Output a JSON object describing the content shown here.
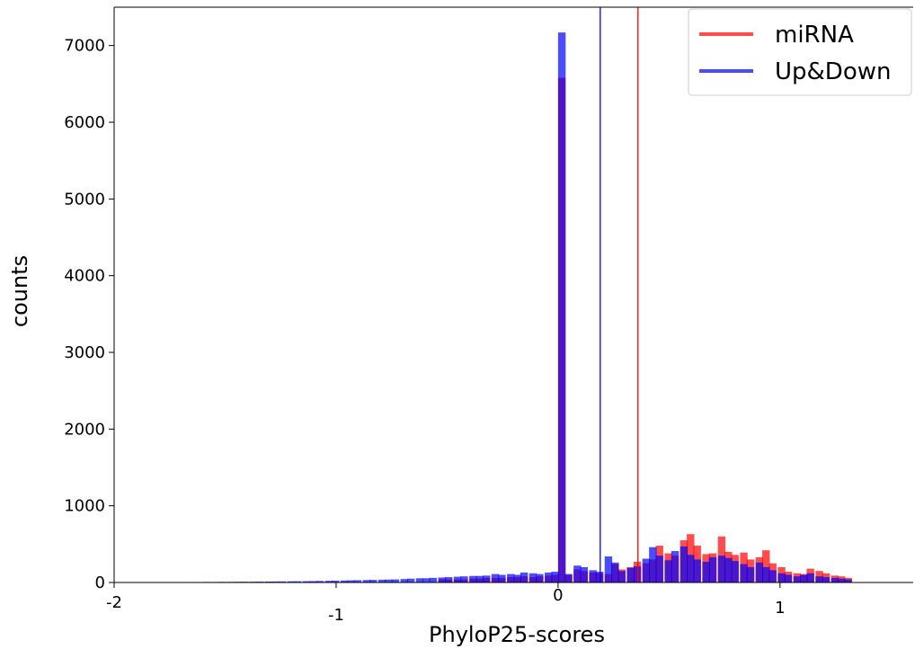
{
  "chart_data": {
    "type": "histogram",
    "title": "",
    "xlabel": "PhyloP25-scores",
    "ylabel": "counts",
    "xlim": [
      -2,
      1.6
    ],
    "ylim": [
      0,
      7500
    ],
    "x_ticks": [
      {
        "value": -2,
        "label": "-2"
      },
      {
        "value": -1,
        "label": "-1"
      },
      {
        "value": 0,
        "label": "0"
      },
      {
        "value": 1,
        "label": "1"
      }
    ],
    "y_ticks": [
      {
        "value": 0,
        "label": "0"
      },
      {
        "value": 1000,
        "label": "1000"
      },
      {
        "value": 2000,
        "label": "2000"
      },
      {
        "value": 3000,
        "label": "3000"
      },
      {
        "value": 4000,
        "label": "4000"
      },
      {
        "value": 5000,
        "label": "5000"
      },
      {
        "value": 6000,
        "label": "6000"
      },
      {
        "value": 7000,
        "label": "7000"
      }
    ],
    "grid": false,
    "legend_position": "top-right",
    "bin_width": 0.034,
    "series": [
      {
        "name": "miRNA",
        "color": "#ff0000",
        "opacity": 0.7,
        "bins": [
          [
            -0.54,
            40
          ],
          [
            -0.51,
            40
          ],
          [
            -0.47,
            40
          ],
          [
            -0.44,
            40
          ],
          [
            -0.4,
            50
          ],
          [
            -0.37,
            50
          ],
          [
            -0.34,
            60
          ],
          [
            -0.3,
            60
          ],
          [
            -0.27,
            60
          ],
          [
            -0.23,
            70
          ],
          [
            -0.2,
            70
          ],
          [
            -0.17,
            80
          ],
          [
            -0.13,
            70
          ],
          [
            -0.1,
            80
          ],
          [
            -0.06,
            90
          ],
          [
            -0.03,
            100
          ],
          [
            0.0,
            6580
          ],
          [
            0.03,
            100
          ],
          [
            0.07,
            170
          ],
          [
            0.1,
            150
          ],
          [
            0.14,
            130
          ],
          [
            0.17,
            120
          ],
          [
            0.21,
            110
          ],
          [
            0.24,
            240
          ],
          [
            0.27,
            170
          ],
          [
            0.31,
            200
          ],
          [
            0.34,
            270
          ],
          [
            0.38,
            250
          ],
          [
            0.41,
            300
          ],
          [
            0.44,
            480
          ],
          [
            0.48,
            380
          ],
          [
            0.51,
            350
          ],
          [
            0.55,
            550
          ],
          [
            0.58,
            630
          ],
          [
            0.61,
            480
          ],
          [
            0.65,
            370
          ],
          [
            0.68,
            380
          ],
          [
            0.72,
            600
          ],
          [
            0.75,
            400
          ],
          [
            0.78,
            360
          ],
          [
            0.82,
            390
          ],
          [
            0.85,
            300
          ],
          [
            0.89,
            330
          ],
          [
            0.92,
            420
          ],
          [
            0.95,
            250
          ],
          [
            0.99,
            200
          ],
          [
            1.02,
            140
          ],
          [
            1.06,
            120
          ],
          [
            1.09,
            110
          ],
          [
            1.12,
            180
          ],
          [
            1.16,
            150
          ],
          [
            1.19,
            120
          ],
          [
            1.23,
            90
          ],
          [
            1.26,
            80
          ],
          [
            1.29,
            60
          ]
        ]
      },
      {
        "name": "Up&Down",
        "color": "#0000ff",
        "opacity": 0.7,
        "bins": [
          [
            -1.8,
            4
          ],
          [
            -1.77,
            4
          ],
          [
            -1.73,
            5
          ],
          [
            -1.7,
            5
          ],
          [
            -1.66,
            6
          ],
          [
            -1.63,
            6
          ],
          [
            -1.6,
            7
          ],
          [
            -1.56,
            7
          ],
          [
            -1.53,
            8
          ],
          [
            -1.49,
            8
          ],
          [
            -1.46,
            9
          ],
          [
            -1.43,
            10
          ],
          [
            -1.39,
            10
          ],
          [
            -1.36,
            11
          ],
          [
            -1.32,
            12
          ],
          [
            -1.29,
            13
          ],
          [
            -1.26,
            14
          ],
          [
            -1.22,
            15
          ],
          [
            -1.19,
            16
          ],
          [
            -1.15,
            17
          ],
          [
            -1.12,
            18
          ],
          [
            -1.09,
            20
          ],
          [
            -1.05,
            22
          ],
          [
            -1.02,
            24
          ],
          [
            -0.98,
            26
          ],
          [
            -0.95,
            28
          ],
          [
            -0.92,
            30
          ],
          [
            -0.88,
            32
          ],
          [
            -0.85,
            34
          ],
          [
            -0.81,
            36
          ],
          [
            -0.78,
            38
          ],
          [
            -0.75,
            40
          ],
          [
            -0.71,
            45
          ],
          [
            -0.68,
            50
          ],
          [
            -0.64,
            55
          ],
          [
            -0.61,
            55
          ],
          [
            -0.58,
            60
          ],
          [
            -0.54,
            65
          ],
          [
            -0.51,
            70
          ],
          [
            -0.47,
            75
          ],
          [
            -0.44,
            80
          ],
          [
            -0.4,
            85
          ],
          [
            -0.37,
            85
          ],
          [
            -0.34,
            90
          ],
          [
            -0.3,
            110
          ],
          [
            -0.27,
            100
          ],
          [
            -0.23,
            110
          ],
          [
            -0.2,
            100
          ],
          [
            -0.17,
            130
          ],
          [
            -0.13,
            120
          ],
          [
            -0.1,
            110
          ],
          [
            -0.06,
            130
          ],
          [
            -0.03,
            140
          ],
          [
            0.0,
            7170
          ],
          [
            0.03,
            110
          ],
          [
            0.07,
            220
          ],
          [
            0.1,
            200
          ],
          [
            0.14,
            160
          ],
          [
            0.17,
            140
          ],
          [
            0.21,
            340
          ],
          [
            0.24,
            260
          ],
          [
            0.27,
            150
          ],
          [
            0.31,
            190
          ],
          [
            0.34,
            210
          ],
          [
            0.38,
            310
          ],
          [
            0.41,
            460
          ],
          [
            0.44,
            350
          ],
          [
            0.48,
            290
          ],
          [
            0.51,
            410
          ],
          [
            0.55,
            470
          ],
          [
            0.58,
            360
          ],
          [
            0.61,
            300
          ],
          [
            0.65,
            270
          ],
          [
            0.68,
            330
          ],
          [
            0.72,
            350
          ],
          [
            0.75,
            320
          ],
          [
            0.78,
            280
          ],
          [
            0.82,
            240
          ],
          [
            0.85,
            200
          ],
          [
            0.89,
            260
          ],
          [
            0.92,
            200
          ],
          [
            0.95,
            160
          ],
          [
            0.99,
            120
          ],
          [
            1.02,
            100
          ],
          [
            1.06,
            80
          ],
          [
            1.09,
            100
          ],
          [
            1.12,
            120
          ],
          [
            1.16,
            80
          ],
          [
            1.19,
            70
          ],
          [
            1.23,
            60
          ],
          [
            1.26,
            50
          ],
          [
            1.29,
            40
          ]
        ]
      }
    ],
    "vertical_lines": [
      {
        "series": "Up&Down",
        "x": 0.19,
        "color": "#0000ff"
      },
      {
        "series": "miRNA",
        "x": 0.36,
        "color": "#ff0000"
      }
    ]
  }
}
